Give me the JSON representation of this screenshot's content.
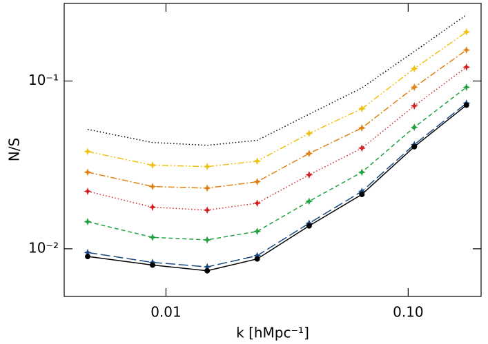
{
  "chart_data": {
    "type": "line",
    "x_label": "k [hMpc⁻¹]",
    "y_label": "N/S",
    "x_scale": "log",
    "y_scale": "log",
    "xlim": [
      0.0038,
      0.2
    ],
    "ylim": [
      0.0052,
      0.29
    ],
    "xticks": [
      0.01,
      {
        "value": 0.1,
        "label": "0.10"
      }
    ],
    "yticks": [
      {
        "value": 0.01,
        "label": "10⁻²"
      },
      {
        "value": 0.1,
        "label": "10⁻¹"
      }
    ],
    "x": [
      0.00475,
      0.0088,
      0.0148,
      0.0238,
      0.039,
      0.0644,
      0.106,
      0.174
    ],
    "series": [
      {
        "color": "#000000",
        "style": "dotted",
        "marker": "none",
        "values": [
          0.0515,
          0.043,
          0.0414,
          0.0443,
          0.0634,
          0.091,
          0.15,
          0.248
        ]
      },
      {
        "color": "#f0c010",
        "style": "dashdotdot",
        "marker": "star",
        "values": [
          0.038,
          0.0315,
          0.0309,
          0.0333,
          0.0487,
          0.0684,
          0.1186,
          0.196
        ]
      },
      {
        "color": "#e08010",
        "style": "dashdot",
        "marker": "star",
        "values": [
          0.0286,
          0.0235,
          0.023,
          0.0251,
          0.037,
          0.0525,
          0.0918,
          0.153
        ]
      },
      {
        "color": "#d02020",
        "style": "dotted",
        "marker": "star",
        "values": [
          0.022,
          0.0177,
          0.017,
          0.0187,
          0.0276,
          0.0398,
          0.0711,
          0.121
        ]
      },
      {
        "color": "#20a040",
        "style": "dashed",
        "marker": "star",
        "values": [
          0.0145,
          0.0117,
          0.0113,
          0.0127,
          0.0192,
          0.0286,
          0.053,
          0.0918
        ]
      },
      {
        "color": "#1a4a80",
        "style": "longdash",
        "marker": "star",
        "values": [
          0.0095,
          0.0083,
          0.0078,
          0.0091,
          0.0142,
          0.022,
          0.0418,
          0.0738
        ]
      },
      {
        "color": "#000000",
        "style": "solid",
        "marker": "circle",
        "values": [
          0.009,
          0.008,
          0.0074,
          0.0087,
          0.0137,
          0.0211,
          0.0406,
          0.0718
        ]
      }
    ]
  }
}
